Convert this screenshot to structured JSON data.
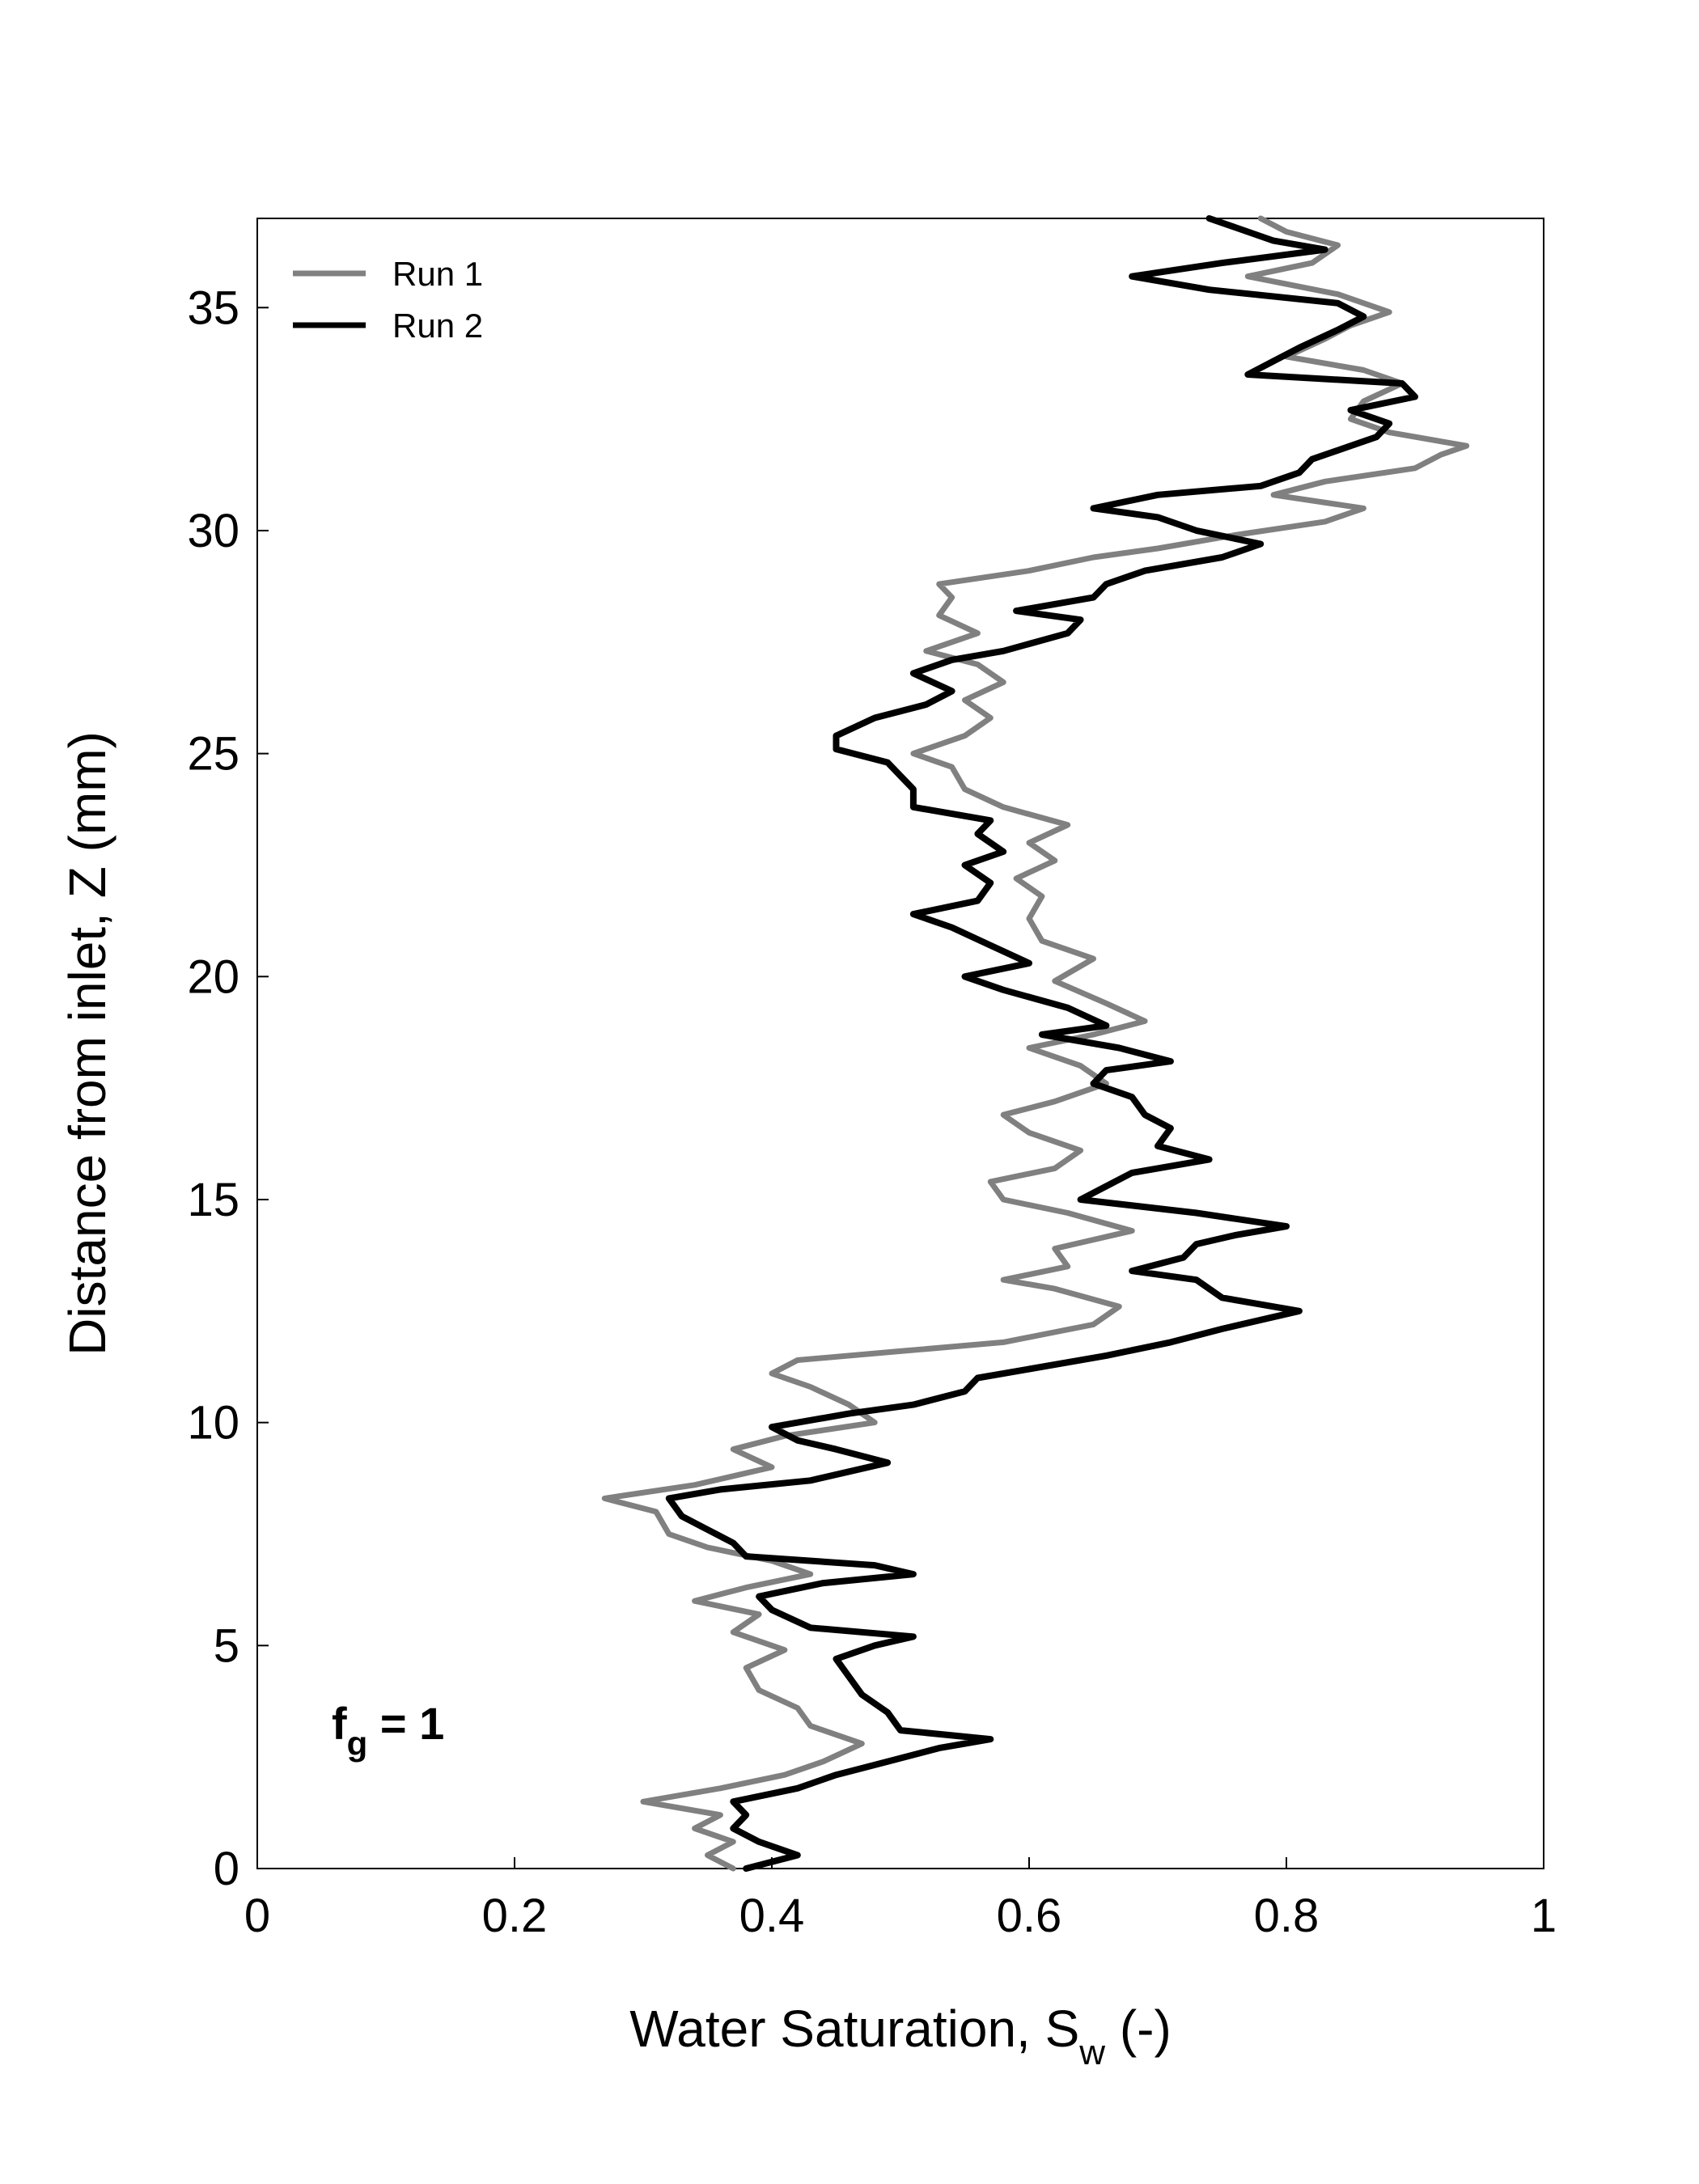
{
  "chart_data": {
    "type": "line",
    "xlabel": {
      "main": "Water Saturation, S",
      "sub": "w",
      "suffix": " (-)"
    },
    "ylabel": "Distance from inlet, Z (mm)",
    "xlim": [
      0,
      1
    ],
    "ylim": [
      0,
      37
    ],
    "xticks": [
      0,
      0.2,
      0.4,
      0.6,
      0.8,
      1
    ],
    "xtick_labels": [
      "0",
      "0.2",
      "0.4",
      "0.6",
      "0.8",
      "1"
    ],
    "yticks": [
      0,
      5,
      10,
      15,
      20,
      25,
      30,
      35
    ],
    "ytick_labels": [
      "0",
      "5",
      "10",
      "15",
      "20",
      "25",
      "30",
      "35"
    ],
    "grid": false,
    "legend_position": "top-left",
    "annotation": {
      "main": "f",
      "sub": "g",
      "suffix": " = 1"
    },
    "series": [
      {
        "name": "Run 1",
        "color": "#808080",
        "points": [
          [
            0.37,
            0.0
          ],
          [
            0.35,
            0.3
          ],
          [
            0.37,
            0.6
          ],
          [
            0.34,
            0.9
          ],
          [
            0.36,
            1.2
          ],
          [
            0.3,
            1.5
          ],
          [
            0.36,
            1.8
          ],
          [
            0.41,
            2.1
          ],
          [
            0.44,
            2.4
          ],
          [
            0.47,
            2.8
          ],
          [
            0.43,
            3.2
          ],
          [
            0.42,
            3.6
          ],
          [
            0.39,
            4.0
          ],
          [
            0.38,
            4.5
          ],
          [
            0.41,
            4.9
          ],
          [
            0.37,
            5.3
          ],
          [
            0.39,
            5.7
          ],
          [
            0.34,
            6.0
          ],
          [
            0.38,
            6.3
          ],
          [
            0.43,
            6.6
          ],
          [
            0.4,
            6.9
          ],
          [
            0.35,
            7.2
          ],
          [
            0.32,
            7.5
          ],
          [
            0.31,
            8.0
          ],
          [
            0.27,
            8.3
          ],
          [
            0.34,
            8.6
          ],
          [
            0.4,
            9.0
          ],
          [
            0.37,
            9.4
          ],
          [
            0.41,
            9.7
          ],
          [
            0.48,
            10.0
          ],
          [
            0.46,
            10.4
          ],
          [
            0.43,
            10.8
          ],
          [
            0.4,
            11.1
          ],
          [
            0.42,
            11.4
          ],
          [
            0.5,
            11.6
          ],
          [
            0.58,
            11.8
          ],
          [
            0.65,
            12.2
          ],
          [
            0.67,
            12.6
          ],
          [
            0.62,
            13.0
          ],
          [
            0.58,
            13.2
          ],
          [
            0.63,
            13.5
          ],
          [
            0.62,
            13.9
          ],
          [
            0.68,
            14.3
          ],
          [
            0.63,
            14.7
          ],
          [
            0.58,
            15.0
          ],
          [
            0.57,
            15.4
          ],
          [
            0.62,
            15.7
          ],
          [
            0.64,
            16.1
          ],
          [
            0.6,
            16.5
          ],
          [
            0.58,
            16.9
          ],
          [
            0.62,
            17.2
          ],
          [
            0.66,
            17.6
          ],
          [
            0.64,
            18.0
          ],
          [
            0.6,
            18.4
          ],
          [
            0.65,
            18.7
          ],
          [
            0.69,
            19.0
          ],
          [
            0.66,
            19.4
          ],
          [
            0.62,
            19.9
          ],
          [
            0.65,
            20.4
          ],
          [
            0.61,
            20.8
          ],
          [
            0.6,
            21.3
          ],
          [
            0.61,
            21.8
          ],
          [
            0.59,
            22.2
          ],
          [
            0.62,
            22.6
          ],
          [
            0.6,
            23.0
          ],
          [
            0.63,
            23.4
          ],
          [
            0.58,
            23.8
          ],
          [
            0.55,
            24.2
          ],
          [
            0.54,
            24.7
          ],
          [
            0.51,
            25.0
          ],
          [
            0.55,
            25.4
          ],
          [
            0.57,
            25.8
          ],
          [
            0.55,
            26.2
          ],
          [
            0.58,
            26.6
          ],
          [
            0.56,
            27.0
          ],
          [
            0.52,
            27.3
          ],
          [
            0.56,
            27.7
          ],
          [
            0.53,
            28.1
          ],
          [
            0.54,
            28.5
          ],
          [
            0.53,
            28.8
          ],
          [
            0.6,
            29.1
          ],
          [
            0.65,
            29.4
          ],
          [
            0.7,
            29.6
          ],
          [
            0.76,
            29.9
          ],
          [
            0.83,
            30.2
          ],
          [
            0.86,
            30.5
          ],
          [
            0.79,
            30.8
          ],
          [
            0.83,
            31.1
          ],
          [
            0.9,
            31.4
          ],
          [
            0.92,
            31.7
          ],
          [
            0.94,
            31.9
          ],
          [
            0.88,
            32.2
          ],
          [
            0.85,
            32.5
          ],
          [
            0.86,
            32.9
          ],
          [
            0.89,
            33.3
          ],
          [
            0.86,
            33.6
          ],
          [
            0.8,
            33.9
          ],
          [
            0.83,
            34.3
          ],
          [
            0.85,
            34.6
          ],
          [
            0.88,
            34.9
          ],
          [
            0.84,
            35.3
          ],
          [
            0.77,
            35.7
          ],
          [
            0.82,
            36.0
          ],
          [
            0.84,
            36.4
          ],
          [
            0.8,
            36.7
          ],
          [
            0.78,
            37.0
          ]
        ]
      },
      {
        "name": "Run 2",
        "color": "#000000",
        "points": [
          [
            0.38,
            0.0
          ],
          [
            0.42,
            0.3
          ],
          [
            0.39,
            0.6
          ],
          [
            0.37,
            0.9
          ],
          [
            0.38,
            1.2
          ],
          [
            0.37,
            1.5
          ],
          [
            0.42,
            1.8
          ],
          [
            0.45,
            2.1
          ],
          [
            0.49,
            2.4
          ],
          [
            0.53,
            2.7
          ],
          [
            0.57,
            2.9
          ],
          [
            0.5,
            3.1
          ],
          [
            0.49,
            3.5
          ],
          [
            0.47,
            3.9
          ],
          [
            0.46,
            4.3
          ],
          [
            0.45,
            4.7
          ],
          [
            0.48,
            5.0
          ],
          [
            0.51,
            5.2
          ],
          [
            0.43,
            5.4
          ],
          [
            0.4,
            5.8
          ],
          [
            0.39,
            6.1
          ],
          [
            0.44,
            6.4
          ],
          [
            0.51,
            6.6
          ],
          [
            0.48,
            6.8
          ],
          [
            0.38,
            7.0
          ],
          [
            0.37,
            7.3
          ],
          [
            0.35,
            7.6
          ],
          [
            0.33,
            7.9
          ],
          [
            0.32,
            8.3
          ],
          [
            0.36,
            8.5
          ],
          [
            0.43,
            8.7
          ],
          [
            0.46,
            8.9
          ],
          [
            0.49,
            9.1
          ],
          [
            0.45,
            9.4
          ],
          [
            0.42,
            9.6
          ],
          [
            0.4,
            9.9
          ],
          [
            0.46,
            10.2
          ],
          [
            0.51,
            10.4
          ],
          [
            0.55,
            10.7
          ],
          [
            0.56,
            11.0
          ],
          [
            0.6,
            11.2
          ],
          [
            0.66,
            11.5
          ],
          [
            0.71,
            11.8
          ],
          [
            0.75,
            12.1
          ],
          [
            0.78,
            12.3
          ],
          [
            0.81,
            12.5
          ],
          [
            0.75,
            12.8
          ],
          [
            0.73,
            13.2
          ],
          [
            0.68,
            13.4
          ],
          [
            0.72,
            13.7
          ],
          [
            0.73,
            14.0
          ],
          [
            0.76,
            14.2
          ],
          [
            0.8,
            14.4
          ],
          [
            0.73,
            14.7
          ],
          [
            0.64,
            15.0
          ],
          [
            0.66,
            15.3
          ],
          [
            0.68,
            15.6
          ],
          [
            0.74,
            15.9
          ],
          [
            0.7,
            16.2
          ],
          [
            0.71,
            16.6
          ],
          [
            0.69,
            16.9
          ],
          [
            0.68,
            17.3
          ],
          [
            0.65,
            17.6
          ],
          [
            0.66,
            17.9
          ],
          [
            0.71,
            18.1
          ],
          [
            0.67,
            18.4
          ],
          [
            0.61,
            18.7
          ],
          [
            0.66,
            18.9
          ],
          [
            0.63,
            19.3
          ],
          [
            0.58,
            19.7
          ],
          [
            0.55,
            20.0
          ],
          [
            0.6,
            20.3
          ],
          [
            0.57,
            20.7
          ],
          [
            0.54,
            21.1
          ],
          [
            0.51,
            21.4
          ],
          [
            0.56,
            21.7
          ],
          [
            0.57,
            22.1
          ],
          [
            0.55,
            22.5
          ],
          [
            0.58,
            22.8
          ],
          [
            0.56,
            23.2
          ],
          [
            0.57,
            23.5
          ],
          [
            0.51,
            23.8
          ],
          [
            0.51,
            24.2
          ],
          [
            0.5,
            24.5
          ],
          [
            0.49,
            24.8
          ],
          [
            0.45,
            25.1
          ],
          [
            0.45,
            25.4
          ],
          [
            0.48,
            25.8
          ],
          [
            0.52,
            26.1
          ],
          [
            0.54,
            26.4
          ],
          [
            0.51,
            26.8
          ],
          [
            0.54,
            27.1
          ],
          [
            0.58,
            27.3
          ],
          [
            0.63,
            27.7
          ],
          [
            0.64,
            28.0
          ],
          [
            0.59,
            28.2
          ],
          [
            0.65,
            28.5
          ],
          [
            0.66,
            28.8
          ],
          [
            0.69,
            29.1
          ],
          [
            0.75,
            29.4
          ],
          [
            0.78,
            29.7
          ],
          [
            0.73,
            30.0
          ],
          [
            0.7,
            30.3
          ],
          [
            0.65,
            30.5
          ],
          [
            0.7,
            30.8
          ],
          [
            0.78,
            31.0
          ],
          [
            0.81,
            31.3
          ],
          [
            0.82,
            31.6
          ],
          [
            0.85,
            31.9
          ],
          [
            0.87,
            32.1
          ],
          [
            0.88,
            32.4
          ],
          [
            0.85,
            32.7
          ],
          [
            0.9,
            33.0
          ],
          [
            0.89,
            33.3
          ],
          [
            0.77,
            33.5
          ],
          [
            0.79,
            33.8
          ],
          [
            0.81,
            34.1
          ],
          [
            0.84,
            34.5
          ],
          [
            0.86,
            34.8
          ],
          [
            0.84,
            35.1
          ],
          [
            0.74,
            35.4
          ],
          [
            0.68,
            35.7
          ],
          [
            0.75,
            36.0
          ],
          [
            0.83,
            36.3
          ],
          [
            0.79,
            36.5
          ],
          [
            0.76,
            36.8
          ],
          [
            0.74,
            37.0
          ]
        ]
      }
    ]
  }
}
